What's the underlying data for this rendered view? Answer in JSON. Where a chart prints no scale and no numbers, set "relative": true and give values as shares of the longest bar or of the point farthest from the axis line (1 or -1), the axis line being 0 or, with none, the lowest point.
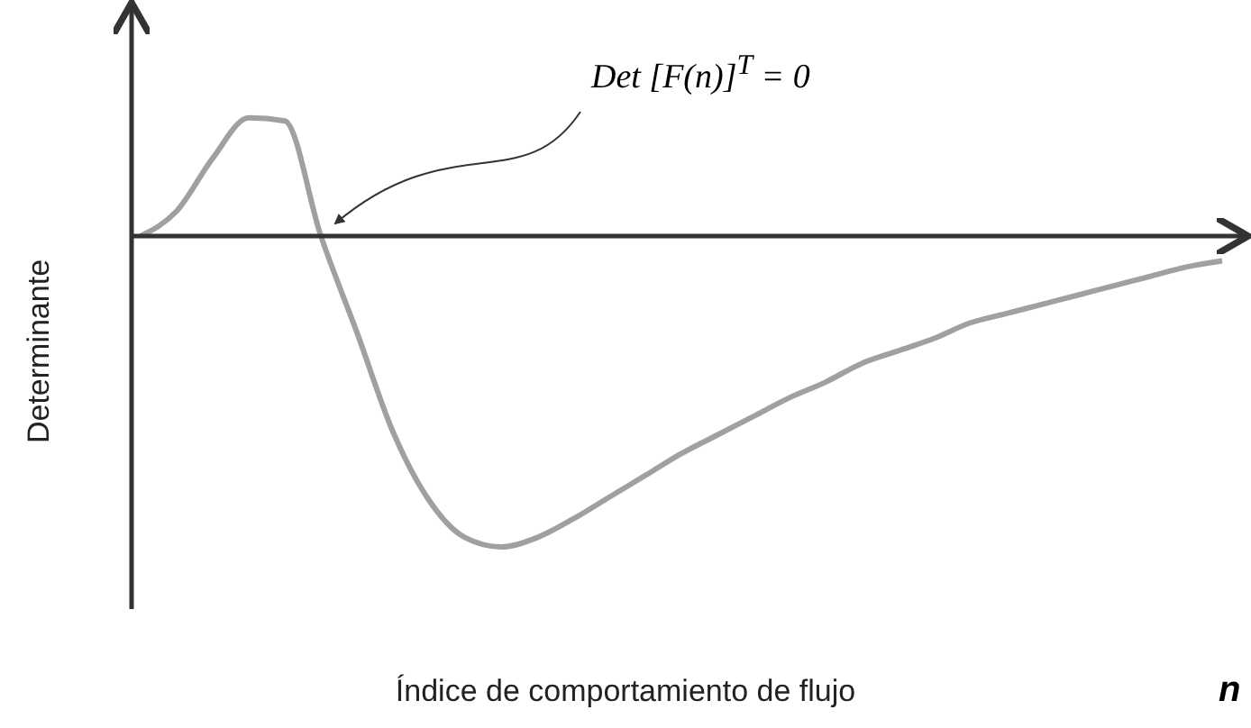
{
  "chart_data": {
    "type": "line",
    "relative": true,
    "xlabel": "Índice de comportamiento de flujo",
    "ylabel": "Determinante",
    "color": "#a0a0a0",
    "annotations": [
      "Det [F(n)]$^{T}$ = 0",
      "n"
    ],
    "categories": [
      null,
      null,
      null,
      null,
      null,
      null,
      null,
      null,
      null,
      null,
      null,
      null,
      null,
      null,
      null,
      null,
      null,
      null,
      null,
      null,
      null,
      null,
      null,
      null,
      null,
      null,
      null,
      null,
      null,
      null,
      null
    ],
    "values": [
      0,
      0.08,
      0.25,
      0.38,
      0.37,
      0,
      -0.31,
      -0.63,
      -0.85,
      -0.97,
      -1,
      -0.97,
      -0.91,
      -0.84,
      -0.77,
      -0.7,
      -0.64,
      -0.58,
      -0.52,
      -0.47,
      -0.41,
      -0.37,
      -0.33,
      -0.28,
      -0.25,
      -0.22,
      -0.19,
      -0.16,
      -0.13,
      -0.1,
      -0.08
    ]
  }
}
